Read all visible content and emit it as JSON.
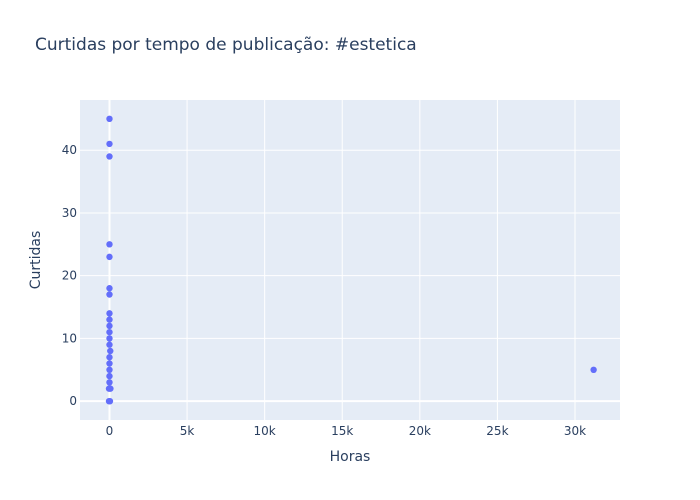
{
  "chart_data": {
    "type": "scatter",
    "title": "Curtidas por tempo de publicação: #estetica",
    "xlabel": "Horas",
    "ylabel": "Curtidas",
    "xlim": [
      -1900,
      32900
    ],
    "ylim": [
      -3,
      48
    ],
    "x_ticks": [
      0,
      5000,
      10000,
      15000,
      20000,
      25000,
      30000
    ],
    "x_tick_labels": [
      "0",
      "5k",
      "10k",
      "15k",
      "20k",
      "25k",
      "30k"
    ],
    "y_ticks": [
      0,
      10,
      20,
      30,
      40
    ],
    "y_tick_labels": [
      "0",
      "10",
      "20",
      "30",
      "40"
    ],
    "grid": true,
    "marker_color": "#636efa",
    "plot_bg": "#e5ecf6",
    "points": [
      {
        "x": 0,
        "y": 45
      },
      {
        "x": 0,
        "y": 41
      },
      {
        "x": 0,
        "y": 39
      },
      {
        "x": 0,
        "y": 25
      },
      {
        "x": 0,
        "y": 23
      },
      {
        "x": 0,
        "y": 18
      },
      {
        "x": 0,
        "y": 17
      },
      {
        "x": 0,
        "y": 14
      },
      {
        "x": 0,
        "y": 13
      },
      {
        "x": 0,
        "y": 12
      },
      {
        "x": 0,
        "y": 11
      },
      {
        "x": 0,
        "y": 10
      },
      {
        "x": 0,
        "y": 9
      },
      {
        "x": 50,
        "y": 8
      },
      {
        "x": 0,
        "y": 7
      },
      {
        "x": 0,
        "y": 6
      },
      {
        "x": 0,
        "y": 5
      },
      {
        "x": 0,
        "y": 4
      },
      {
        "x": 0,
        "y": 3
      },
      {
        "x": -30,
        "y": 2
      },
      {
        "x": 60,
        "y": 2
      },
      {
        "x": -30,
        "y": 0
      },
      {
        "x": 30,
        "y": 0
      },
      {
        "x": 31200,
        "y": 5
      }
    ]
  }
}
